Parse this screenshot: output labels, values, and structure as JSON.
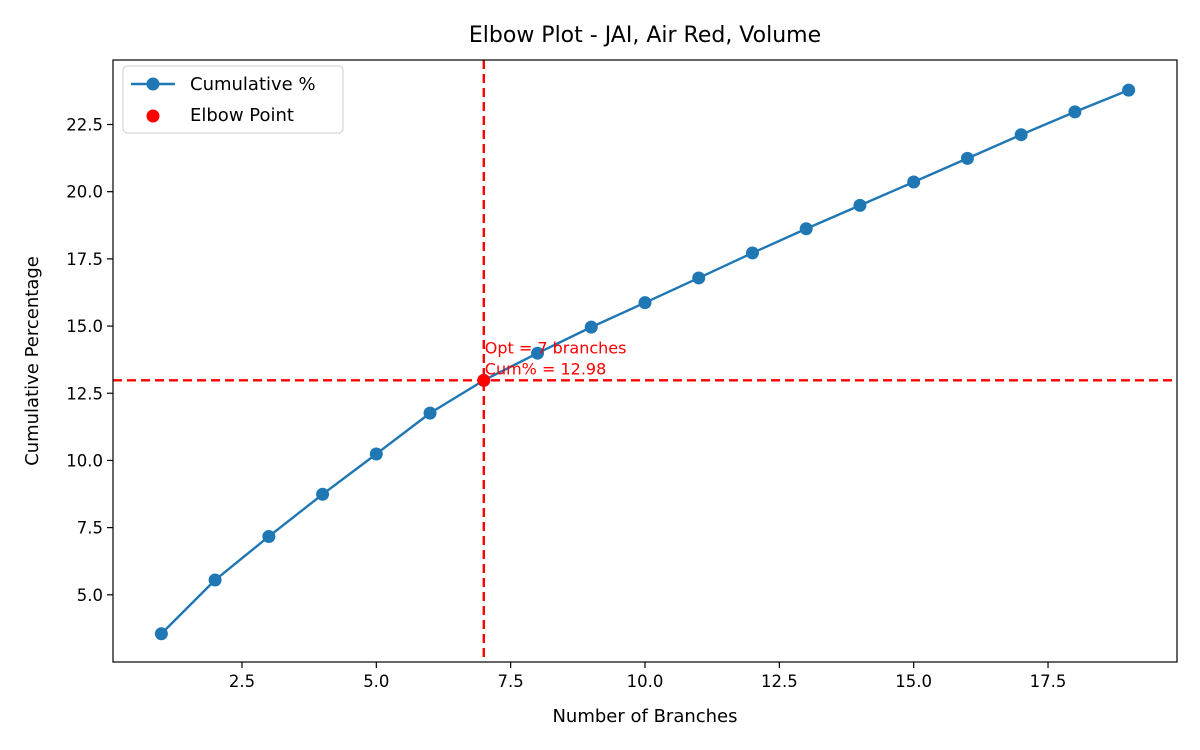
{
  "chart_data": {
    "type": "line",
    "title": "Elbow Plot - JAI, Air Red, Volume",
    "xlabel": "Number of Branches",
    "ylabel": "Cumulative Percentage",
    "xlim": [
      0.1,
      19.9
    ],
    "ylim": [
      2.5,
      24.9
    ],
    "xticks": [
      2.5,
      5.0,
      7.5,
      10.0,
      12.5,
      15.0,
      17.5
    ],
    "xtick_labels": [
      "2.5",
      "5.0",
      "7.5",
      "10.0",
      "12.5",
      "15.0",
      "17.5"
    ],
    "yticks": [
      5.0,
      7.5,
      10.0,
      12.5,
      15.0,
      17.5,
      20.0,
      22.5
    ],
    "ytick_labels": [
      "5.0",
      "7.5",
      "10.0",
      "12.5",
      "15.0",
      "17.5",
      "20.0",
      "22.5"
    ],
    "grid": false,
    "legend_position": "top-left",
    "series": [
      {
        "name": "Cumulative %",
        "color": "#1f77b4",
        "x": [
          1,
          2,
          3,
          4,
          5,
          6,
          7,
          8,
          9,
          10,
          11,
          12,
          13,
          14,
          15,
          16,
          17,
          18,
          19
        ],
        "y": [
          3.55,
          5.55,
          7.17,
          8.74,
          10.24,
          11.76,
          12.98,
          13.99,
          14.96,
          15.87,
          16.79,
          17.72,
          18.62,
          19.49,
          20.36,
          21.24,
          22.12,
          22.97,
          23.78
        ]
      }
    ],
    "elbow_point": {
      "name": "Elbow Point",
      "x": 7,
      "y": 12.98,
      "color": "#ff0000",
      "annotation_lines": [
        "Opt = 7 branches",
        "Cum% = 12.98"
      ]
    }
  }
}
